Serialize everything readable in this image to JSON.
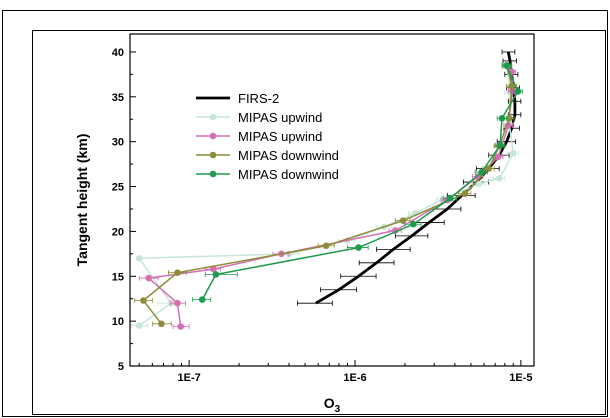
{
  "chart_data": {
    "type": "line",
    "xlabel": "O",
    "xlabel_sub": "3",
    "ylabel": "Tangent height (km)",
    "xscale": "log",
    "xlim": [
      4.4e-08,
      1.2e-05
    ],
    "ylim": [
      5,
      42
    ],
    "x_ticks": [
      {
        "value": 1e-07,
        "label": "1E-7"
      },
      {
        "value": 1e-06,
        "label": "1E-6"
      },
      {
        "value": 1e-05,
        "label": "1E-5"
      }
    ],
    "y_ticks": [
      {
        "value": 5,
        "label": "5"
      },
      {
        "value": 10,
        "label": "10"
      },
      {
        "value": 15,
        "label": "15"
      },
      {
        "value": 20,
        "label": "20"
      },
      {
        "value": 25,
        "label": "25"
      },
      {
        "value": 30,
        "label": "30"
      },
      {
        "value": 35,
        "label": "35"
      },
      {
        "value": 40,
        "label": "40"
      }
    ],
    "legend_position": "upper-left",
    "series": [
      {
        "name": "FIRS-2",
        "color": "#000000",
        "markers": false,
        "line_width": 2.8,
        "points": [
          [
            5.8e-07,
            12
          ],
          [
            8e-07,
            13.5
          ],
          [
            1.05e-06,
            15
          ],
          [
            1.35e-06,
            16.5
          ],
          [
            1.7e-06,
            18
          ],
          [
            2.2e-06,
            19.5
          ],
          [
            2.8e-06,
            21
          ],
          [
            3.6e-06,
            22.5
          ],
          [
            4.4e-06,
            24
          ],
          [
            5.4e-06,
            25.5
          ],
          [
            6.4e-06,
            27
          ],
          [
            7.4e-06,
            28.5
          ],
          [
            8.2e-06,
            30
          ],
          [
            8.8e-06,
            31.5
          ],
          [
            9.2e-06,
            33
          ],
          [
            9.2e-06,
            34.5
          ],
          [
            9e-06,
            36
          ],
          [
            8.8e-06,
            37.5
          ],
          [
            8.6e-06,
            39
          ],
          [
            8.4e-06,
            40
          ]
        ],
        "x_err": [
          [
            4.5e-07,
            7.3e-07
          ],
          [
            6.2e-07,
            1.02e-06
          ],
          [
            8.2e-07,
            1.34e-06
          ],
          [
            1.06e-06,
            1.72e-06
          ],
          [
            1.35e-06,
            2.15e-06
          ],
          [
            1.75e-06,
            2.75e-06
          ],
          [
            2.25e-06,
            3.45e-06
          ],
          [
            2.95e-06,
            4.35e-06
          ],
          [
            3.6e-06,
            5.3e-06
          ],
          [
            4.5e-06,
            6.4e-06
          ],
          [
            5.4e-06,
            7.4e-06
          ],
          [
            6.4e-06,
            8.5e-06
          ],
          [
            7.2e-06,
            9.3e-06
          ],
          [
            7.9e-06,
            9.8e-06
          ],
          [
            8.4e-06,
            1e-05
          ],
          [
            8.4e-06,
            1e-05
          ],
          [
            8.2e-06,
            9.8e-06
          ],
          [
            8e-06,
            9.6e-06
          ],
          [
            7.8e-06,
            9.4e-06
          ],
          [
            7.7e-06,
            9.2e-06
          ]
        ]
      },
      {
        "name": "MIPAS upwind",
        "color": "#c6e6d8",
        "markers": true,
        "line_width": 1.5,
        "points": [
          [
            5e-08,
            9.5
          ],
          [
            7.8e-08,
            12
          ],
          [
            5e-08,
            17
          ],
          [
            4e-07,
            17.5
          ],
          [
            9e-07,
            19
          ],
          [
            1.5e-06,
            20.5
          ],
          [
            2.3e-06,
            22
          ],
          [
            3.4e-06,
            23.6
          ],
          [
            5.6e-06,
            25.3
          ],
          [
            7.4e-06,
            25.9
          ],
          [
            9e-06,
            28.7
          ],
          [
            8.5e-06,
            32
          ],
          [
            8.6e-06,
            35.5
          ],
          [
            8.3e-06,
            38.4
          ]
        ],
        "x_err": [
          [
            4.5e-08,
            5.6e-08
          ],
          [
            6.5e-08,
            9.5e-08
          ],
          null,
          [
            3.5e-07,
            4.6e-07
          ],
          [
            8e-07,
            1e-06
          ],
          [
            1.35e-06,
            1.65e-06
          ],
          [
            2.1e-06,
            2.5e-06
          ],
          [
            3.1e-06,
            3.7e-06
          ],
          [
            5.1e-06,
            6.1e-06
          ],
          [
            6.8e-06,
            8e-06
          ],
          [
            8.3e-06,
            9.7e-06
          ],
          [
            7.9e-06,
            9.1e-06
          ],
          [
            8e-06,
            9.2e-06
          ],
          [
            7.7e-06,
            8.9e-06
          ]
        ]
      },
      {
        "name": "MIPAS upwind",
        "color": "#d36fb4",
        "markers": true,
        "line_width": 1.5,
        "points": [
          [
            8.9e-08,
            9.4
          ],
          [
            8.5e-08,
            12
          ],
          [
            5.7e-08,
            14.8
          ],
          [
            1.4e-07,
            15.8
          ],
          [
            3.6e-07,
            17.5
          ],
          [
            1.75e-06,
            20.1
          ],
          [
            3.6e-06,
            23.5
          ],
          [
            5.5e-06,
            26.1
          ],
          [
            7.3e-06,
            28.3
          ],
          [
            8.4e-06,
            31.8
          ],
          [
            8.9e-06,
            35.7
          ],
          [
            8.8e-06,
            37.8
          ]
        ],
        "x_err": [
          [
            8e-08,
            1e-07
          ],
          [
            7.7e-08,
            9.5e-08
          ],
          [
            5e-08,
            6.5e-08
          ],
          [
            1.25e-07,
            1.55e-07
          ],
          [
            3.2e-07,
            4e-07
          ],
          [
            1.6e-06,
            1.9e-06
          ],
          [
            3.3e-06,
            3.9e-06
          ],
          [
            5.1e-06,
            5.9e-06
          ],
          [
            6.8e-06,
            7.8e-06
          ],
          [
            7.9e-06,
            8.9e-06
          ],
          [
            8.4e-06,
            9.4e-06
          ],
          [
            8.3e-06,
            9.3e-06
          ]
        ]
      },
      {
        "name": "MIPAS downwind",
        "color": "#8c8c3a",
        "markers": true,
        "line_width": 1.5,
        "points": [
          [
            6.8e-08,
            9.7
          ],
          [
            5.3e-08,
            12.3
          ],
          [
            8.5e-08,
            15.4
          ],
          [
            6.7e-07,
            18.4
          ],
          [
            1.95e-06,
            21.2
          ],
          [
            4.6e-06,
            24.2
          ],
          [
            6.4e-06,
            27
          ],
          [
            7.4e-06,
            29.5
          ],
          [
            8.5e-06,
            32.6
          ],
          [
            8.8e-06,
            36.2
          ],
          [
            8.3e-06,
            38.4
          ]
        ],
        "x_err": [
          [
            6e-08,
            7.8e-08
          ],
          [
            4.7e-08,
            6e-08
          ],
          [
            7.5e-08,
            9.6e-08
          ],
          [
            6e-07,
            7.5e-07
          ],
          [
            1.75e-06,
            2.15e-06
          ],
          [
            4.2e-06,
            5e-06
          ],
          [
            5.9e-06,
            6.9e-06
          ],
          [
            6.9e-06,
            7.9e-06
          ],
          [
            7.9e-06,
            9.1e-06
          ],
          [
            8.2e-06,
            9.4e-06
          ],
          [
            7.8e-06,
            8.8e-06
          ]
        ]
      },
      {
        "name": "MIPAS downwind",
        "color": "#1e9a4d",
        "markers": true,
        "line_width": 1.5,
        "points": [
          [
            1.2e-07,
            12.4
          ],
          [
            1.45e-07,
            15.2
          ],
          [
            1.05e-06,
            18.2
          ],
          [
            2.25e-06,
            20.8
          ],
          [
            3.75e-06,
            23.7
          ],
          [
            5.8e-06,
            26.6
          ],
          [
            7.5e-06,
            29.6
          ],
          [
            7.7e-06,
            32.6
          ],
          [
            9.6e-06,
            35.6
          ],
          [
            8.2e-06,
            38.5
          ]
        ],
        "x_err": [
          [
            1.05e-07,
            1.35e-07
          ],
          [
            1.25e-07,
            1.95e-07
          ],
          [
            9e-07,
            1.2e-06
          ],
          [
            2e-06,
            2.5e-06
          ],
          [
            3.4e-06,
            4.1e-06
          ],
          [
            5.3e-06,
            6.3e-06
          ],
          [
            7e-06,
            8e-06
          ],
          [
            7.2e-06,
            8.2e-06
          ],
          [
            9e-06,
            1.02e-05
          ],
          [
            7.7e-06,
            8.7e-06
          ]
        ]
      }
    ]
  }
}
